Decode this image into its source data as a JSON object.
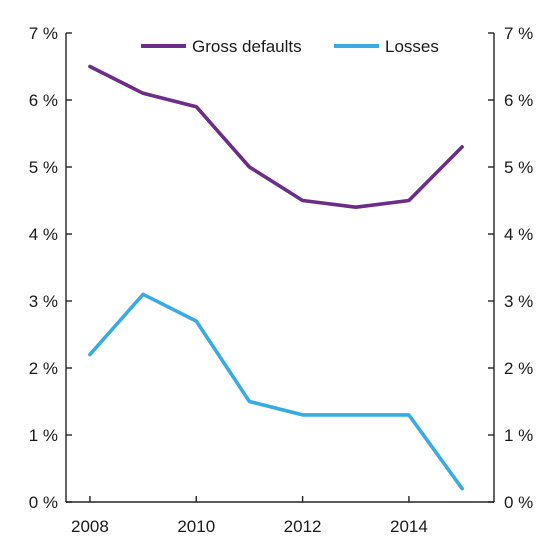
{
  "chart_data": {
    "type": "line",
    "title": "",
    "xlabel": "",
    "ylabel": "",
    "x": [
      2008,
      2009,
      2010,
      2011,
      2012,
      2013,
      2014,
      2015
    ],
    "x_tick_values": [
      2008,
      2010,
      2012,
      2014
    ],
    "x_tick_labels": [
      "2008",
      "2010",
      "2012",
      "2014"
    ],
    "xlim": [
      2007.55,
      2015.6
    ],
    "ylim": [
      0,
      7
    ],
    "y_tick_values": [
      0,
      1,
      2,
      3,
      4,
      5,
      6,
      7
    ],
    "y_tick_labels": [
      "0 %",
      "1 %",
      "2 %",
      "3 %",
      "4 %",
      "5 %",
      "6 %",
      "7 %"
    ],
    "y_axis_right": true,
    "grid": false,
    "legend_position": "top",
    "series": [
      {
        "name": "Gross defaults",
        "color": "#6b2d86",
        "values": [
          6.5,
          6.1,
          5.9,
          5.0,
          4.5,
          4.4,
          4.5,
          5.3
        ]
      },
      {
        "name": "Losses",
        "color": "#39abe0",
        "values": [
          2.2,
          3.1,
          2.7,
          1.5,
          1.3,
          1.3,
          1.3,
          0.2
        ]
      }
    ]
  }
}
